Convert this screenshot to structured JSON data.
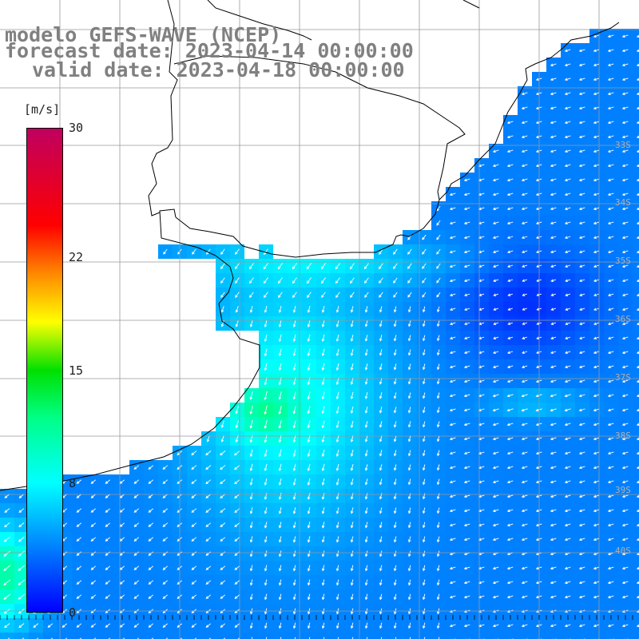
{
  "title": {
    "line1": "modelo GEFS-WAVE (NCEP)",
    "line2": "forecast date: 2023-04-14 00:00:00",
    "line3": "valid date: 2023-04-18 00:00:00"
  },
  "colorbar": {
    "unit": "[m/s]",
    "ticks": [
      {
        "value": 30,
        "label": "30"
      },
      {
        "value": 22,
        "label": "22"
      },
      {
        "value": 15,
        "label": "15"
      },
      {
        "value": 8,
        "label": "8"
      },
      {
        "value": 0,
        "label": "0"
      }
    ],
    "min": 0,
    "max": 30
  },
  "map": {
    "type": "wind-speed-field",
    "lat_labels": [
      "33S",
      "34S",
      "35S",
      "36S",
      "37S",
      "38S",
      "39S",
      "40S"
    ],
    "ocean_colors": {
      "low": "#0000ff",
      "mid": "#00aaff",
      "high": "#00ffcc",
      "peak": "#00e070"
    },
    "land_color": "#ffffff",
    "grid_color": "#999999",
    "vector_color": "#ffffff"
  }
}
